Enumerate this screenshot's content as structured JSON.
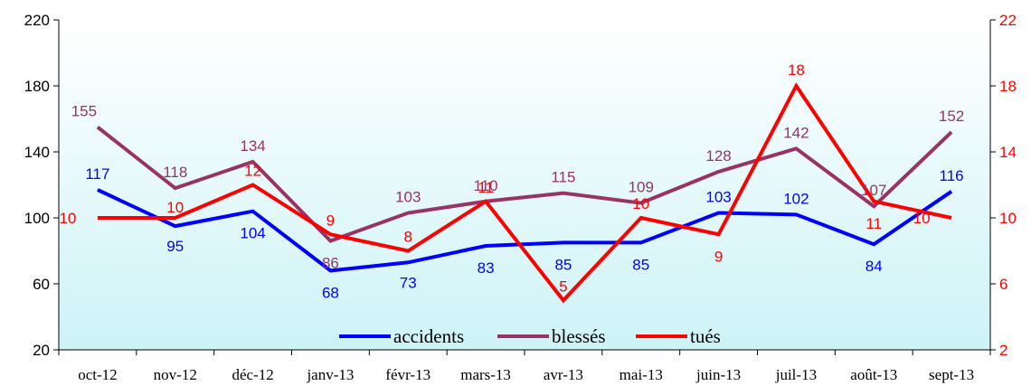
{
  "chart_data": {
    "type": "line",
    "categories": [
      "oct-12",
      "nov-12",
      "déc-12",
      "janv-13",
      "févr-13",
      "mars-13",
      "avr-13",
      "mai-13",
      "juin-13",
      "juil-13",
      "août-13",
      "sept-13"
    ],
    "series": [
      {
        "name": "accidents",
        "axis": "left",
        "color": "#0000ff",
        "label_color": "#0000ff",
        "values": [
          117,
          95,
          104,
          68,
          73,
          83,
          85,
          85,
          103,
          102,
          84,
          116
        ],
        "labels": [
          "117",
          "95",
          "104",
          "68",
          "73",
          "83",
          "85",
          "85",
          "103",
          "102",
          "84",
          "116"
        ]
      },
      {
        "name": "blessés",
        "axis": "left",
        "color": "#993366",
        "label_color": "#993366",
        "values": [
          155,
          118,
          134,
          86,
          103,
          110,
          115,
          109,
          128,
          142,
          107,
          152
        ],
        "labels": [
          "155",
          "118",
          "134",
          "86",
          "103",
          "110",
          "115",
          "109",
          "128",
          "142",
          "107",
          "152"
        ]
      },
      {
        "name": "tués",
        "axis": "right",
        "color": "#ff0000",
        "label_color": "#ff0000",
        "values": [
          10,
          10,
          12,
          9,
          8,
          11,
          5,
          10,
          9,
          18,
          11,
          10
        ],
        "labels": [
          "10",
          "10",
          "12",
          "9",
          "8",
          "11",
          "5",
          "10",
          "9",
          "18",
          "11",
          "10"
        ]
      }
    ],
    "y_left": {
      "lim": [
        20,
        220
      ],
      "ticks": [
        20,
        60,
        100,
        140,
        180,
        220
      ],
      "tick_labels": [
        "20",
        "60",
        "100",
        "140",
        "180",
        "220"
      ]
    },
    "y_right": {
      "lim": [
        2,
        22
      ],
      "ticks": [
        2,
        6,
        10,
        14,
        18,
        22
      ],
      "tick_labels": [
        "2",
        "6",
        "10",
        "14",
        "18",
        "22"
      ]
    },
    "grid": false,
    "legend": {
      "placement": "bottom-center",
      "entries": [
        "accidents",
        "blessés",
        "tués"
      ]
    },
    "background_gradient": [
      "#ffffff",
      "#cdf3f7"
    ],
    "title": "",
    "xlabel": "",
    "ylabel": ""
  }
}
